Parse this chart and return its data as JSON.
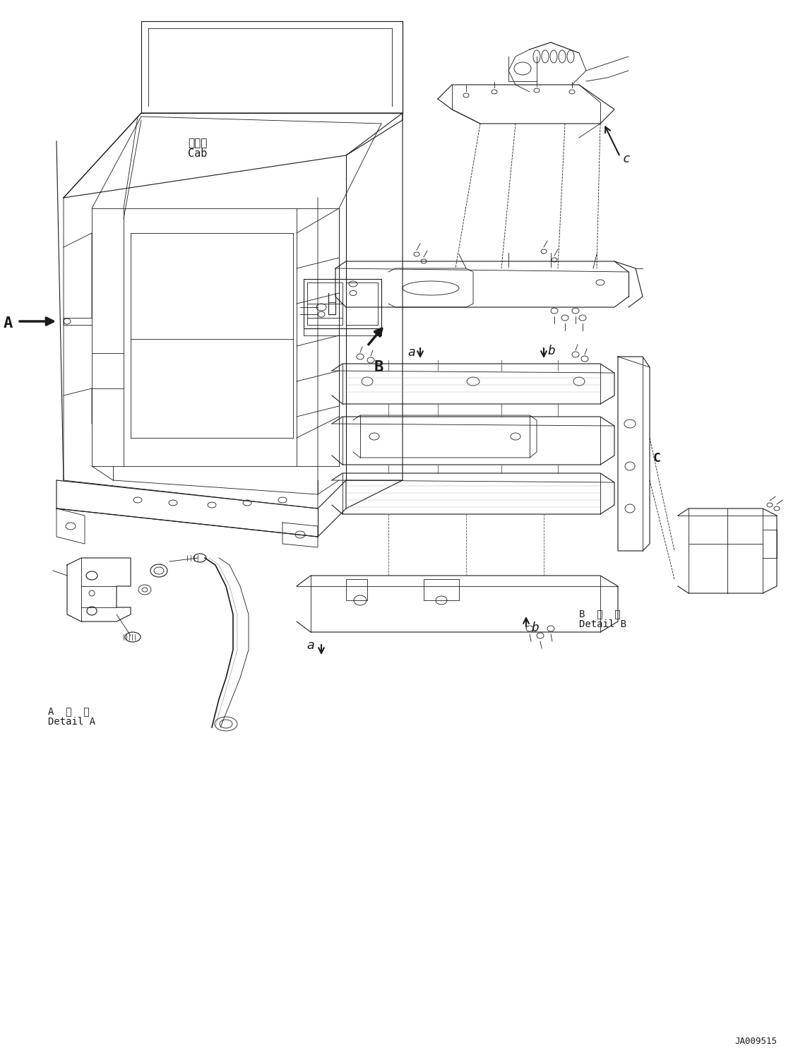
{
  "bg_color": "#ffffff",
  "line_color": "#1a1a1a",
  "text_color": "#1a1a1a",
  "fig_width": 11.47,
  "fig_height": 14.91,
  "dpi": 100,
  "labels": {
    "A_arrow": "A",
    "B_arrow": "B",
    "c_label": "c",
    "a_label1": "a",
    "b_label1": "b",
    "C_label": "C",
    "a_label2": "a",
    "b_label2": "b",
    "detail_a_jp": "A  詳  細",
    "detail_a_en": "Detail A",
    "detail_b_jp": "B  詳  細",
    "detail_b_en": "Detail B",
    "cab_jp": "キャブ",
    "cab_en": "Cab",
    "part_number": "JA009515"
  }
}
